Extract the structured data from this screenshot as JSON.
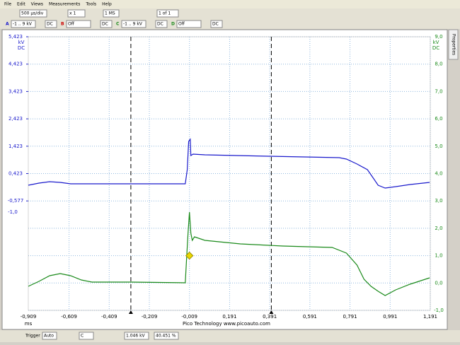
{
  "menu": [
    "File",
    "Edit",
    "Views",
    "Measurements",
    "Tools",
    "Help"
  ],
  "toolbar": {
    "timebase": "500 µs/div",
    "zoom": "x 1",
    "samples": "1 MS",
    "buffer": "1 of 1"
  },
  "channels": [
    {
      "name": "A",
      "range": "-1 .. 9 kV",
      "coupling": "DC"
    },
    {
      "name": "B",
      "range": "Off",
      "coupling": "DC"
    },
    {
      "name": "C",
      "range": "-1 .. 9 kV",
      "coupling": "DC"
    },
    {
      "name": "D",
      "range": "Off",
      "coupling": "DC"
    }
  ],
  "status": {
    "trigger": "Trigger",
    "mode": "Auto",
    "source": "C",
    "level": "1.046 kV",
    "pretrigger": "40.451 %"
  },
  "side_tab": "Properties",
  "chart_data": {
    "type": "line",
    "footer": "Pico Technology   www.picoauto.com",
    "xlabel": "ms",
    "x_start_label": "-0,909",
    "ylabel": "kV",
    "ylabel2": "DC",
    "y2label": "kV",
    "y2label2": "DC",
    "y_extra_label": "-1,0",
    "xlim": [
      -0.812,
      1.191
    ],
    "xticks": [
      {
        "value": -0.609,
        "label": "-0,609"
      },
      {
        "value": -0.409,
        "label": "-0,409"
      },
      {
        "value": -0.209,
        "label": "-0,209"
      },
      {
        "value": -0.009,
        "label": "-0,009"
      },
      {
        "value": 0.191,
        "label": "0,191"
      },
      {
        "value": 0.391,
        "label": "0,391"
      },
      {
        "value": 0.591,
        "label": "0,591"
      },
      {
        "value": 0.791,
        "label": "0,791"
      },
      {
        "value": 0.991,
        "label": "0,991"
      },
      {
        "value": 1.191,
        "label": "1,191"
      }
    ],
    "ylim": [
      -4.577,
      5.423
    ],
    "yticks": [
      {
        "value": 5.423,
        "label": "5,423"
      },
      {
        "value": 4.423,
        "label": "4,423"
      },
      {
        "value": 3.423,
        "label": "3,423"
      },
      {
        "value": 2.423,
        "label": "2,423"
      },
      {
        "value": 1.423,
        "label": "1,423"
      },
      {
        "value": 0.423,
        "label": "0,423"
      },
      {
        "value": -0.577,
        "label": "-0,577"
      }
    ],
    "y2lim": [
      -1,
      9
    ],
    "y2ticks": [
      {
        "value": 9,
        "label": "9,0"
      },
      {
        "value": 8,
        "label": "8,0"
      },
      {
        "value": 7,
        "label": "7,0"
      },
      {
        "value": 6,
        "label": "6,0"
      },
      {
        "value": 5,
        "label": "5,0"
      },
      {
        "value": 4,
        "label": "4,0"
      },
      {
        "value": 3,
        "label": "3,0"
      },
      {
        "value": 2,
        "label": "2,0"
      },
      {
        "value": 1,
        "label": "1,0"
      },
      {
        "value": 0,
        "label": "0,0"
      },
      {
        "value": -1,
        "label": "-1,0"
      }
    ],
    "grid": true,
    "cursors": [
      -0.301,
      0.399
    ],
    "trigger": {
      "x": -0.009,
      "y": 1.0,
      "color": "#e8d800"
    },
    "series": [
      {
        "name": "A",
        "color": "#1a1acc",
        "x": [
          -0.812,
          -0.759,
          -0.706,
          -0.653,
          -0.601,
          -0.495,
          -0.301,
          -0.03,
          -0.02,
          -0.013,
          -0.005,
          -0.002,
          0.009,
          0.068,
          0.385,
          0.737,
          0.773,
          0.826,
          0.878,
          0.907,
          0.931,
          0.966,
          1.019,
          1.09,
          1.188
        ],
        "values": [
          -0.003,
          0.074,
          0.126,
          0.1,
          0.048,
          0.048,
          0.048,
          0.048,
          0.565,
          1.599,
          1.676,
          1.082,
          1.134,
          1.108,
          1.056,
          1.004,
          0.953,
          0.772,
          0.565,
          0.255,
          -0.003,
          -0.107,
          -0.055,
          0.022,
          0.1
        ]
      },
      {
        "name": "C",
        "color": "#1a8a1a",
        "axis": "y2",
        "x": [
          -0.812,
          -0.759,
          -0.706,
          -0.653,
          -0.601,
          -0.548,
          -0.495,
          -0.301,
          -0.03,
          -0.023,
          -0.016,
          -0.009,
          -0.002,
          0.005,
          0.016,
          0.068,
          0.245,
          0.456,
          0.702,
          0.773,
          0.826,
          0.861,
          0.896,
          0.931,
          0.966,
          1.019,
          1.09,
          1.188
        ],
        "values": [
          -0.121,
          0.059,
          0.266,
          0.344,
          0.266,
          0.111,
          0.034,
          0.034,
          0.008,
          0.912,
          1.817,
          2.592,
          1.817,
          1.558,
          1.687,
          1.558,
          1.429,
          1.351,
          1.3,
          1.093,
          0.654,
          0.137,
          -0.121,
          -0.302,
          -0.457,
          -0.251,
          -0.043,
          0.189
        ]
      }
    ]
  }
}
